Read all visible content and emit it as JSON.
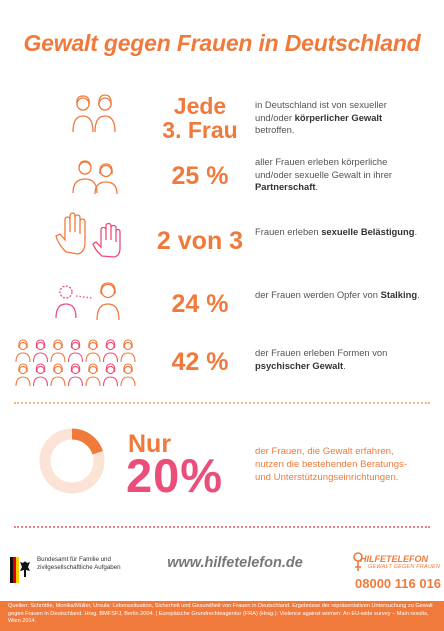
{
  "title": "Gewalt gegen Frauen in Deutschland",
  "rows": [
    {
      "stat_line1": "Jede",
      "stat_line2": "3. Frau",
      "desc_pre": "in Deutschland ist von sexueller und/oder ",
      "desc_bold": "körperlicher Gewalt",
      "desc_post": " betroffen."
    },
    {
      "stat": "25 %",
      "desc_pre": "aller Frauen erleben körperliche und/oder sexuelle Gewalt in ihrer ",
      "desc_bold": "Partnerschaft",
      "desc_post": "."
    },
    {
      "stat": "2 von 3",
      "desc_pre": "Frauen erleben ",
      "desc_bold": "sexuelle Belästigung",
      "desc_post": "."
    },
    {
      "stat": "24 %",
      "desc_pre": "der Frauen werden Opfer von ",
      "desc_bold": "Stalking",
      "desc_post": "."
    },
    {
      "stat": "42 %",
      "desc_pre": "der Frauen erleben Formen von ",
      "desc_bold": "psychischer Gewalt",
      "desc_post": "."
    }
  ],
  "highlight": {
    "nur": "Nur",
    "value": "20%",
    "fraction": 0.2,
    "desc": "der Frauen, die Gewalt erfahren, nutzen die bestehenden Beratungs- und Unterstützungseinrichtungen."
  },
  "footer": {
    "ministry": "Bundesamt für Familie und zivilgesellschaftliche Aufgaben",
    "url": "www.hilfetelefon.de",
    "hotline_name": "HILFETELEFON",
    "hotline_sub": "GEWALT GEGEN FRAUEN",
    "phone": "08000 116 016",
    "sources": "Quellen: Schröttle, Monika/Müller, Ursula: Lebenssituation, Sicherheit und Gesundheit von Frauen in Deutschland. Ergebnisse der repräsentativen Untersuchung zu Gewalt gegen Frauen in Deutschland. Hrsg. BMFSFJ, Berlin 2004. | Europäische Grundrechteagentur (FRA) (Hrsg.): Violence against women: An EU-wide survey – Main results, Wien 2014."
  },
  "colors": {
    "orange": "#f07a3c",
    "pink": "#ec4e7a",
    "ring_bg": "#fbe3d6"
  }
}
